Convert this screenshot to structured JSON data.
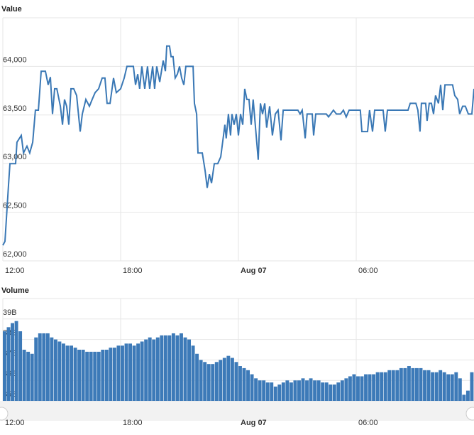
{
  "chart_data": [
    {
      "type": "line",
      "title": "Value",
      "color": "#3a78b5",
      "xlim": [
        0,
        24
      ],
      "ylim": [
        62000,
        64500
      ],
      "xticks": [
        {
          "value": 0,
          "label": "12:00"
        },
        {
          "value": 6,
          "label": "18:00"
        },
        {
          "value": 12,
          "label": "Aug 07"
        },
        {
          "value": 18,
          "label": "06:00"
        }
      ],
      "yticks": [
        {
          "value": 62000,
          "label": "62,000"
        },
        {
          "value": 62500,
          "label": "62,500"
        },
        {
          "value": 63000,
          "label": "63,000"
        },
        {
          "value": 63500,
          "label": "63,500"
        },
        {
          "value": 64000,
          "label": "64,000"
        }
      ],
      "grid": true,
      "x": [
        0,
        0.11,
        0.29,
        0.36,
        0.65,
        0.72,
        0.94,
        1.05,
        1.23,
        1.37,
        1.52,
        1.66,
        1.81,
        1.95,
        2.17,
        2.31,
        2.42,
        2.53,
        2.64,
        2.75,
        2.93,
        3.04,
        3.14,
        3.25,
        3.36,
        3.47,
        3.61,
        3.76,
        3.94,
        4.05,
        4.23,
        4.41,
        4.55,
        4.7,
        4.88,
        5.06,
        5.2,
        5.31,
        5.46,
        5.64,
        5.78,
        6,
        6.18,
        6.32,
        6.65,
        6.76,
        6.87,
        6.97,
        7.08,
        7.23,
        7.37,
        7.48,
        7.63,
        7.73,
        7.84,
        7.99,
        8.17,
        8.28,
        8.35,
        8.49,
        8.57,
        8.67,
        8.78,
        8.89,
        9,
        9.11,
        9.22,
        9.32,
        9.69,
        9.76,
        9.87,
        9.94,
        10.16,
        10.3,
        10.41,
        10.52,
        10.63,
        10.77,
        10.95,
        11.1,
        11.24,
        11.31,
        11.38,
        11.49,
        11.6,
        11.67,
        11.78,
        11.89,
        12,
        12.11,
        12.22,
        12.32,
        12.43,
        12.54,
        12.65,
        12.75,
        12.87,
        13.01,
        13.12,
        13.23,
        13.34,
        13.44,
        13.59,
        13.73,
        13.88,
        14.02,
        14.17,
        14.28,
        15.03,
        15.14,
        15.25,
        15.4,
        15.5,
        15.76,
        15.83,
        15.94,
        16.48,
        16.59,
        16.7,
        16.84,
        16.99,
        17.2,
        17.35,
        17.49,
        17.64,
        18.21,
        18.29,
        18.58,
        18.68,
        18.83,
        18.94,
        19.37,
        19.48,
        19.59,
        20.64,
        20.75,
        21.04,
        21.14,
        21.25,
        21.32,
        21.54,
        21.61,
        21.72,
        21.83,
        21.94,
        22.04,
        22.19,
        22.3,
        22.41,
        22.52,
        22.91,
        23.02,
        23.17,
        23.27,
        23.42,
        23.56,
        23.71,
        23.89,
        24
      ],
      "values": [
        62160,
        62200,
        62780,
        63000,
        63000,
        63220,
        63290,
        63110,
        63180,
        63110,
        63220,
        63550,
        63550,
        63950,
        63950,
        63810,
        63890,
        63510,
        63770,
        63770,
        63590,
        63400,
        63660,
        63590,
        63400,
        63770,
        63770,
        63700,
        63330,
        63510,
        63660,
        63590,
        63660,
        63730,
        63770,
        63880,
        63880,
        63620,
        63620,
        63880,
        63730,
        63770,
        63880,
        64000,
        64000,
        63810,
        63920,
        63770,
        64000,
        63770,
        64000,
        63770,
        64000,
        63770,
        64000,
        63840,
        64060,
        63950,
        64210,
        64210,
        64100,
        64100,
        63880,
        63920,
        64000,
        63880,
        63810,
        64000,
        64000,
        63620,
        63510,
        63110,
        63110,
        62930,
        62750,
        62890,
        62800,
        63000,
        63000,
        63070,
        63290,
        63400,
        63260,
        63510,
        63290,
        63510,
        63400,
        63510,
        63290,
        63510,
        63400,
        63770,
        63660,
        63660,
        63400,
        63660,
        63370,
        63040,
        63620,
        63510,
        63620,
        63370,
        63590,
        63290,
        63510,
        63550,
        63240,
        63550,
        63550,
        63510,
        63550,
        63260,
        63510,
        63510,
        63290,
        63510,
        63510,
        63480,
        63510,
        63550,
        63510,
        63510,
        63550,
        63480,
        63550,
        63550,
        63330,
        63330,
        63550,
        63330,
        63550,
        63550,
        63330,
        63550,
        63550,
        63620,
        63620,
        63550,
        63330,
        63620,
        63620,
        63440,
        63620,
        63620,
        63510,
        63700,
        63620,
        63810,
        63550,
        63810,
        63810,
        63700,
        63660,
        63510,
        63590,
        63590,
        63510,
        63510,
        63770
      ]
    },
    {
      "type": "bar",
      "title": "Volume",
      "color": "#3d7ab8",
      "xlim": [
        0,
        24
      ],
      "ylim": [
        35,
        40
      ],
      "xticks": [
        {
          "value": 0,
          "label": "12:00"
        },
        {
          "value": 6,
          "label": "18:00"
        },
        {
          "value": 12,
          "label": "Aug 07"
        },
        {
          "value": 18,
          "label": "06:00"
        }
      ],
      "yticks": [
        {
          "value": 35,
          "label": "35B"
        },
        {
          "value": 36,
          "label": "36B"
        },
        {
          "value": 37,
          "label": "37B"
        },
        {
          "value": 38,
          "label": "38B"
        },
        {
          "value": 39,
          "label": "39B"
        }
      ],
      "grid": true,
      "x": [
        0.1,
        0.3,
        0.5,
        0.7,
        0.9,
        1.1,
        1.3,
        1.5,
        1.7,
        1.9,
        2.1,
        2.3,
        2.5,
        2.7,
        2.9,
        3.1,
        3.3,
        3.5,
        3.7,
        3.9,
        4.1,
        4.3,
        4.5,
        4.7,
        4.9,
        5.1,
        5.3,
        5.5,
        5.7,
        5.9,
        6.1,
        6.3,
        6.5,
        6.7,
        6.9,
        7.1,
        7.3,
        7.5,
        7.7,
        7.9,
        8.1,
        8.3,
        8.5,
        8.7,
        8.9,
        9.1,
        9.3,
        9.5,
        9.7,
        9.9,
        10.1,
        10.3,
        10.5,
        10.7,
        10.9,
        11.1,
        11.3,
        11.5,
        11.7,
        11.9,
        12.1,
        12.3,
        12.5,
        12.7,
        12.9,
        13.1,
        13.3,
        13.5,
        13.7,
        13.9,
        14.1,
        14.3,
        14.5,
        14.7,
        14.9,
        15.1,
        15.3,
        15.5,
        15.7,
        15.9,
        16.1,
        16.3,
        16.5,
        16.7,
        16.9,
        17.1,
        17.3,
        17.5,
        17.7,
        17.9,
        18.1,
        18.3,
        18.5,
        18.7,
        18.9,
        19.1,
        19.3,
        19.5,
        19.7,
        19.9,
        20.1,
        20.3,
        20.5,
        20.7,
        20.9,
        21.1,
        21.3,
        21.5,
        21.7,
        21.9,
        22.1,
        22.3,
        22.5,
        22.7,
        22.9,
        23.1,
        23.3,
        23.5,
        23.7,
        23.9
      ],
      "values": [
        38.4,
        38.6,
        38.8,
        38.9,
        38.4,
        37.5,
        37.4,
        37.3,
        38.1,
        38.3,
        38.3,
        38.3,
        38.1,
        38,
        37.9,
        37.8,
        37.7,
        37.7,
        37.6,
        37.5,
        37.5,
        37.4,
        37.4,
        37.4,
        37.4,
        37.5,
        37.5,
        37.6,
        37.6,
        37.7,
        37.7,
        37.8,
        37.8,
        37.7,
        37.8,
        37.9,
        38,
        38.1,
        38,
        38.1,
        38.2,
        38.2,
        38.2,
        38.3,
        38.2,
        38.3,
        38.1,
        38,
        37.7,
        37.3,
        37,
        36.9,
        36.8,
        36.8,
        36.9,
        37,
        37.1,
        37.2,
        37.1,
        36.9,
        36.7,
        36.6,
        36.5,
        36.3,
        36.1,
        36,
        36,
        35.9,
        35.9,
        35.7,
        35.8,
        35.9,
        36,
        35.9,
        36,
        36,
        36.1,
        36,
        36.1,
        36,
        36,
        35.9,
        35.9,
        35.8,
        35.8,
        35.9,
        36,
        36.1,
        36.2,
        36.3,
        36.2,
        36.2,
        36.3,
        36.3,
        36.3,
        36.4,
        36.4,
        36.4,
        36.5,
        36.5,
        36.5,
        36.6,
        36.6,
        36.7,
        36.6,
        36.6,
        36.6,
        36.5,
        36.5,
        36.4,
        36.4,
        36.5,
        36.4,
        36.3,
        36.3,
        36.4,
        36.1,
        35.3,
        35.5,
        36.4
      ]
    }
  ]
}
